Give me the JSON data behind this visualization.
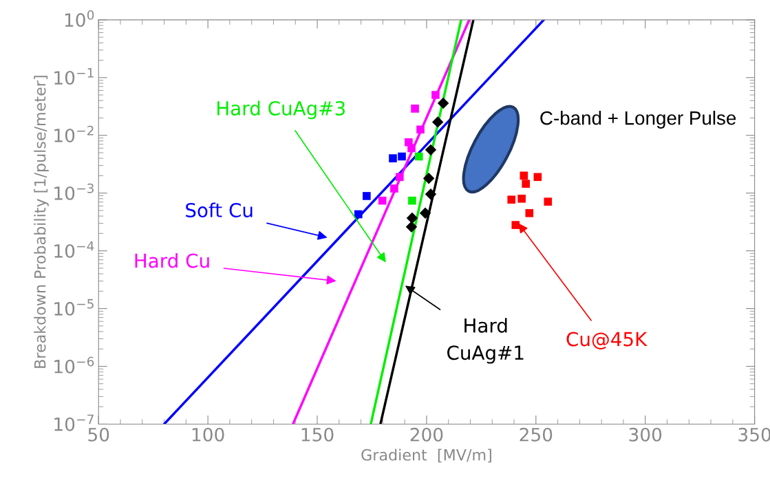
{
  "chart_data": {
    "type": "scatter",
    "xlabel": "Gradient  [MV/m]",
    "ylabel": "Breakdown Probability [1/pulse/meter]",
    "log": "y",
    "grid": false,
    "marker": "square",
    "xlim": [
      50,
      350
    ],
    "xticks": [
      50,
      100,
      150,
      200,
      250,
      300,
      350
    ],
    "ylim": [
      1e-07,
      1
    ],
    "yticks": [
      {
        "value": 1e-07,
        "label": "10$^{−7}$"
      },
      {
        "value": 1e-06,
        "label": "10$^{−6}$"
      },
      {
        "value": 1e-05,
        "label": "10$^{−5}$"
      },
      {
        "value": 0.0001,
        "label": "10$^{−4}$"
      },
      {
        "value": 0.001,
        "label": "10$^{−3}$"
      },
      {
        "value": 0.01,
        "label": "10$^{−2}$"
      },
      {
        "value": 0.1,
        "label": "10$^{−1}$"
      },
      {
        "value": 1,
        "label": "10$^{0}$"
      }
    ],
    "series": [
      {
        "type": "line",
        "marker": "none",
        "color": "#0000ff",
        "x": [
          80,
          253.6
        ],
        "values": [
          1e-07,
          1
        ]
      },
      {
        "type": "line",
        "marker": "none",
        "color": "#ff00ff",
        "x": [
          138.9,
          219.5
        ],
        "values": [
          1e-07,
          1
        ]
      },
      {
        "type": "line",
        "marker": "none",
        "color": "#00ee00",
        "x": [
          174.5,
          215.8
        ],
        "values": [
          1e-07,
          1
        ]
      },
      {
        "type": "line",
        "marker": "none",
        "color": "#000000",
        "x": [
          178.9,
          221.4
        ],
        "values": [
          1e-07,
          1
        ]
      },
      {
        "name": "Soft Cu",
        "color": "#0000ff",
        "x": [
          168.8,
          172.6,
          184.6,
          188.7
        ],
        "values": [
          0.00043,
          0.00089,
          0.004,
          0.0043
        ]
      },
      {
        "name": "Hard Cu",
        "color": "#ff00ff",
        "x": [
          179.8,
          185.2,
          187.7,
          191.8,
          193.1,
          194.7,
          197.2,
          204.1
        ],
        "values": [
          0.00074,
          0.0012,
          0.0019,
          0.0076,
          0.006,
          0.029,
          0.0126,
          0.05
        ]
      },
      {
        "name": "Hard CuAg#3",
        "color": "#00ee00",
        "x": [
          193.4,
          196.5
        ],
        "values": [
          0.00074,
          0.0043
        ]
      },
      {
        "name": "Hard\nCuAg#1",
        "color": "#000000",
        "marker": "diamond",
        "x": [
          193.1,
          193.4,
          199.4,
          201.9,
          201.0,
          201.9,
          205.1,
          207.6
        ],
        "values": [
          0.00026,
          0.00037,
          0.00045,
          0.00096,
          0.0018,
          0.0056,
          0.017,
          0.036
        ]
      },
      {
        "name": "Cu@45K",
        "color": "#ff0000",
        "x": [
          240.7,
          247.0,
          255.5,
          243.5,
          238.8,
          245.4,
          250.8,
          244.5
        ],
        "values": [
          0.00028,
          0.00045,
          0.00071,
          0.0008,
          0.00077,
          0.00145,
          0.0019,
          0.002
        ]
      }
    ],
    "annotations": [
      "C-band + Longer Pulse"
    ]
  }
}
